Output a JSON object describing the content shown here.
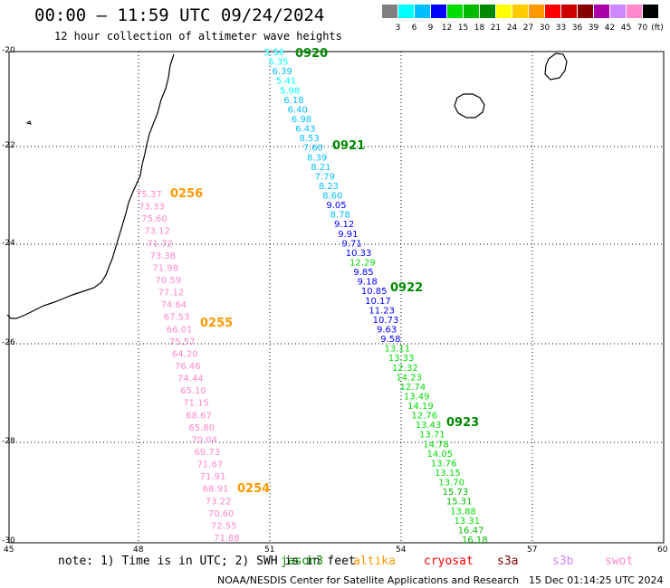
{
  "title": "00:00 – 11:59 UTC 09/24/2024",
  "subtitle": "12 hour collection of altimeter wave heights",
  "legend": {
    "colors": [
      "#808080",
      "#00ffff",
      "#00bfff",
      "#0000ff",
      "#00dd00",
      "#00bb00",
      "#008800",
      "#ffff00",
      "#ffcc00",
      "#ff9900",
      "#ff0000",
      "#cc0000",
      "#880000",
      "#aa00aa",
      "#cc88ff",
      "#ff88cc",
      "#000000"
    ],
    "ticks": [
      "3",
      "6",
      "9",
      "12",
      "15",
      "18",
      "21",
      "24",
      "27",
      "30",
      "33",
      "36",
      "39",
      "42",
      "45",
      "70"
    ],
    "unit": "(ft)"
  },
  "axes": {
    "lat_ticks": [
      "-20",
      "-22",
      "-24",
      "-26",
      "-28",
      "-30"
    ],
    "lon_ticks": [
      "45",
      "48",
      "51",
      "54",
      "57",
      "60"
    ]
  },
  "passes": [
    {
      "time": "0920",
      "color": "#008800"
    },
    {
      "time": "0921",
      "color": "#008800"
    },
    {
      "time": "0922",
      "color": "#008800"
    },
    {
      "time": "0923",
      "color": "#008800"
    },
    {
      "time": "0256",
      "color": "#ff9900"
    },
    {
      "time": "0255",
      "color": "#ff9900"
    },
    {
      "time": "0254",
      "color": "#ff9900"
    }
  ],
  "track_east": {
    "values": [
      "5.56",
      "5.35",
      "6.39",
      "5.41",
      "5.98",
      "6.18",
      "6.40",
      "6.98",
      "6.43",
      "8.53",
      "7.60",
      "8.39",
      "8.21",
      "7.79",
      "8.23",
      "8.60",
      "9.05",
      "8.78",
      "9.12",
      "9.91",
      "9.71",
      "10.33",
      "12.29",
      "9.85",
      "9.18",
      "10.85",
      "10.17",
      "11.23",
      "10.73",
      "9.63",
      "9.58",
      "13.11",
      "13.33",
      "12.32",
      "14.23",
      "12.74",
      "13.49",
      "14.19",
      "12.76",
      "13.43",
      "13.71",
      "14.78",
      "14.05",
      "13.76",
      "13.15",
      "13.70",
      "15.73",
      "15.31",
      "13.88",
      "13.31",
      "16.47",
      "16.18"
    ]
  },
  "track_west": {
    "values": [
      "75.37",
      "73.33",
      "75.60",
      "73.12",
      "71.72",
      "73.38",
      "71.98",
      "70.59",
      "77.12",
      "74.64",
      "67.53",
      "66.01",
      "75.57",
      "64.20",
      "76.46",
      "74.44",
      "65.10",
      "71.15",
      "68.67",
      "65.80",
      "70.04",
      "69.73",
      "71.67",
      "71.91",
      "68.91",
      "73.22",
      "70.60",
      "72.55",
      "71.88"
    ]
  },
  "notes": {
    "prefix": "note: 1) Time is in UTC; 2) SWH is in feet",
    "satellites": [
      {
        "name": "jason3",
        "color": "#008800"
      },
      {
        "name": "altika",
        "color": "#ff9900"
      },
      {
        "name": "cryosat",
        "color": "#ff0000"
      },
      {
        "name": "s3a",
        "color": "#880000"
      },
      {
        "name": "s3b",
        "color": "#cc88ff"
      },
      {
        "name": "swot",
        "color": "#ff88cc"
      }
    ]
  },
  "credit": "NOAA/NESDIS Center for Satellite Applications and Research",
  "timestamp": "15 Dec 01:14:25 UTC 2024"
}
